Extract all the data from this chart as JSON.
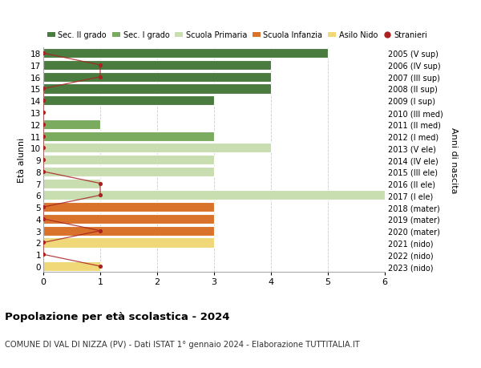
{
  "ages": [
    18,
    17,
    16,
    15,
    14,
    13,
    12,
    11,
    10,
    9,
    8,
    7,
    6,
    5,
    4,
    3,
    2,
    1,
    0
  ],
  "years": [
    "2005 (V sup)",
    "2006 (IV sup)",
    "2007 (III sup)",
    "2008 (II sup)",
    "2009 (I sup)",
    "2010 (III med)",
    "2011 (II med)",
    "2012 (I med)",
    "2013 (V ele)",
    "2014 (IV ele)",
    "2015 (III ele)",
    "2016 (II ele)",
    "2017 (I ele)",
    "2018 (mater)",
    "2019 (mater)",
    "2020 (mater)",
    "2021 (nido)",
    "2022 (nido)",
    "2023 (nido)"
  ],
  "bar_values": [
    5,
    4,
    4,
    4,
    3,
    0,
    1,
    3,
    4,
    3,
    3,
    1,
    6,
    3,
    3,
    3,
    3,
    0,
    1
  ],
  "bar_colors": [
    "#4a7c3f",
    "#4a7c3f",
    "#4a7c3f",
    "#4a7c3f",
    "#4a7c3f",
    "#7aab5f",
    "#7aab5f",
    "#7aab5f",
    "#c8ddb0",
    "#c8ddb0",
    "#c8ddb0",
    "#c8ddb0",
    "#c8ddb0",
    "#d9722a",
    "#d9722a",
    "#d9722a",
    "#f0d878",
    "#f0d878",
    "#f0d878"
  ],
  "stranieri_values": [
    0,
    1,
    1,
    0,
    0,
    0,
    0,
    0,
    0,
    0,
    0,
    1,
    1,
    0,
    0,
    1,
    0,
    0,
    1
  ],
  "stranieri_color": "#aa2222",
  "xlim": [
    0,
    6
  ],
  "ylim": [
    -0.5,
    18.5
  ],
  "ylabel_left": "Età alunni",
  "ylabel_right": "Anni di nascita",
  "title1": "Popolazione per età scolastica - 2024",
  "title2": "COMUNE DI VAL DI NIZZA (PV) - Dati ISTAT 1° gennaio 2024 - Elaborazione TUTTITALIA.IT",
  "legend_labels": [
    "Sec. II grado",
    "Sec. I grado",
    "Scuola Primaria",
    "Scuola Infanzia",
    "Asilo Nido",
    "Stranieri"
  ],
  "legend_colors": [
    "#4a7c3f",
    "#7aab5f",
    "#c8ddb0",
    "#d9722a",
    "#f0d878",
    "#aa2222"
  ],
  "bg_color": "#ffffff",
  "plot_bg": "#ffffff",
  "grid_color": "#cccccc",
  "bar_height": 0.82
}
